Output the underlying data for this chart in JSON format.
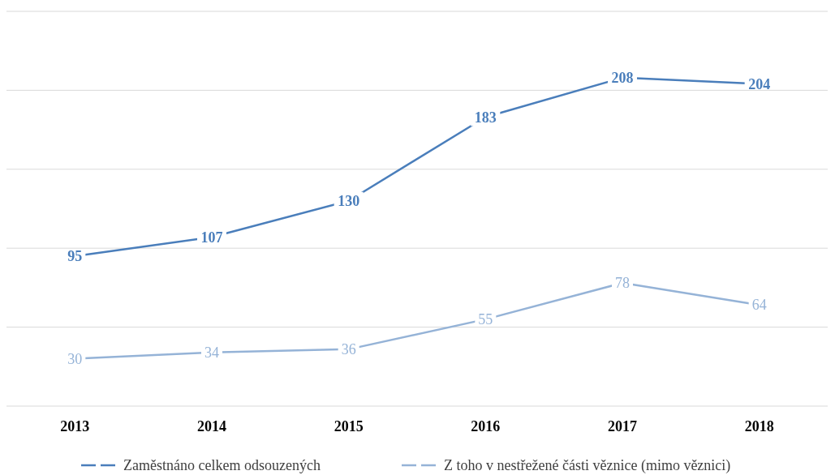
{
  "chart_data": {
    "type": "line",
    "categories": [
      "2013",
      "2014",
      "2015",
      "2016",
      "2017",
      "2018"
    ],
    "series": [
      {
        "name": "Zaměstnáno celkem odsouzených",
        "color": "#4a7ebb",
        "values": [
          95,
          107,
          130,
          183,
          208,
          204
        ]
      },
      {
        "name": "Z toho v nestřežené části věznice (mimo věznici)",
        "color": "#95b3d7",
        "values": [
          30,
          34,
          36,
          55,
          78,
          64
        ]
      }
    ],
    "ylim": [
      0,
      250
    ],
    "yticks": [
      {
        "value": 0,
        "label": null
      },
      {
        "value": 50,
        "label": null
      },
      {
        "value": 100,
        "label": null
      },
      {
        "value": 150,
        "label": null
      },
      {
        "value": 200,
        "label": null
      },
      {
        "value": 250,
        "label": null
      }
    ],
    "tick_labels": "x",
    "grid": "y",
    "legend": "bottom",
    "data_labels": true,
    "line_style": "solid"
  }
}
